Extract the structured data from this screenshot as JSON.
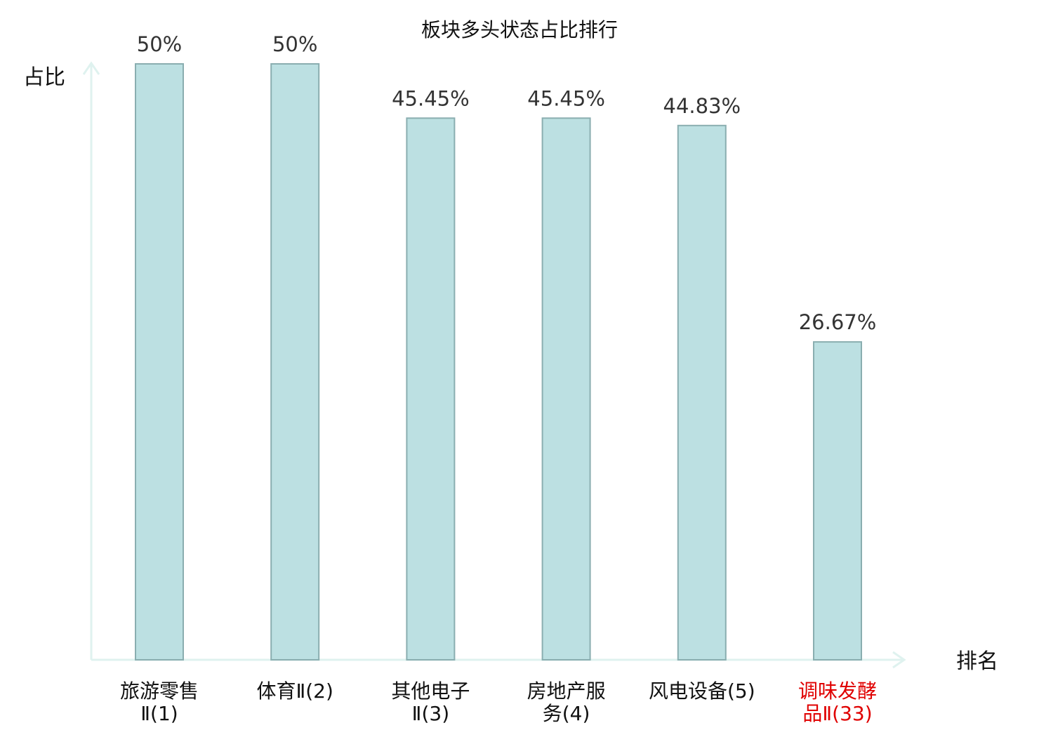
{
  "chart_data": {
    "type": "bar",
    "title": "板块多头状态占比排行",
    "ylabel": "占比",
    "xlabel": "排名",
    "ylim": [
      0,
      50
    ],
    "grid": false,
    "legend": "none",
    "categories": [
      {
        "lines": [
          "旅游零售",
          "Ⅱ(1)"
        ],
        "highlight": false
      },
      {
        "lines": [
          "体育Ⅱ(2)"
        ],
        "highlight": false
      },
      {
        "lines": [
          "其他电子",
          "Ⅱ(3)"
        ],
        "highlight": false
      },
      {
        "lines": [
          "房地产服",
          "务(4)"
        ],
        "highlight": false
      },
      {
        "lines": [
          "风电设备(5)"
        ],
        "highlight": false
      },
      {
        "lines": [
          "调味发酵",
          "品Ⅱ(33)"
        ],
        "highlight": true
      }
    ],
    "values": [
      50,
      50,
      45.45,
      45.45,
      44.83,
      26.67
    ],
    "value_labels": [
      "50%",
      "50%",
      "45.45%",
      "45.45%",
      "44.83%",
      "26.67%"
    ]
  },
  "colors": {
    "bar_fill": "#bce0e2",
    "bar_stroke": "#8aaeb0",
    "axis": "#dff2ef",
    "text": "#111111",
    "value_text": "#333333",
    "highlight_text": "#e00000"
  }
}
